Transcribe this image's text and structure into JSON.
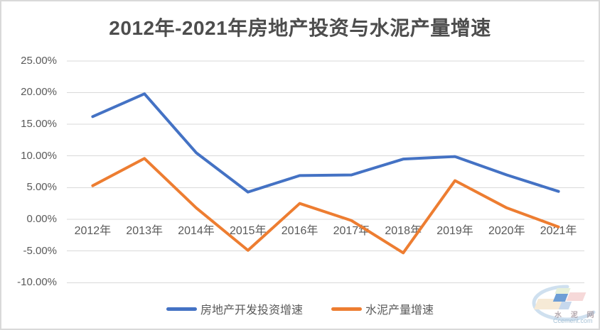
{
  "title": "2012年-2021年房地产投资与水泥产量增速",
  "chart_data": {
    "type": "line",
    "title": "2012年-2021年房地产投资与水泥产量增速",
    "categories": [
      "2012年",
      "2013年",
      "2014年",
      "2015年",
      "2016年",
      "2017年",
      "2018年",
      "2019年",
      "2020年",
      "2021年"
    ],
    "series": [
      {
        "name": "房地产开发投资增速",
        "color": "#4472C4",
        "values": [
          16.2,
          19.8,
          10.5,
          4.3,
          6.9,
          7.0,
          9.5,
          9.9,
          7.0,
          4.4
        ]
      },
      {
        "name": "水泥产量增速",
        "color": "#ED7D31",
        "values": [
          5.3,
          9.6,
          1.8,
          -4.9,
          2.5,
          -0.2,
          -5.3,
          6.1,
          1.8,
          -1.2
        ]
      }
    ],
    "ylim": [
      -10,
      25
    ],
    "ytick_step": 5,
    "ytick_suffix": "%",
    "grid": true,
    "legend_position": "bottom",
    "gridline_color": "#D9D9D9",
    "axis_label_color": "#595959",
    "xlabel": "",
    "ylabel": ""
  },
  "watermark": {
    "logo_text": "水 泥 网",
    "domain": "Ccement.com"
  }
}
